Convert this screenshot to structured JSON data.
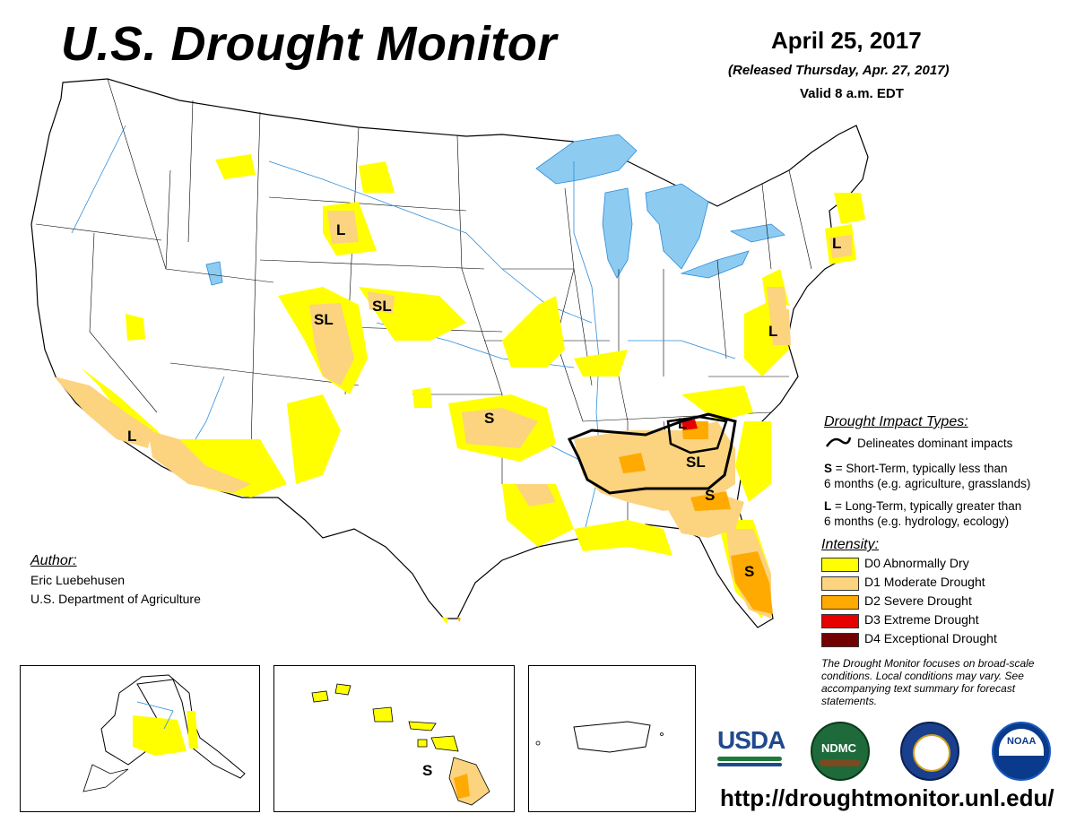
{
  "header": {
    "title": "U.S. Drought Monitor",
    "date": "April 25, 2017",
    "released": "(Released Thursday, Apr. 27, 2017)",
    "valid": "Valid 8 a.m. EDT"
  },
  "impact_types": {
    "heading": "Drought Impact Types:",
    "delineates": "Delineates dominant impacts",
    "short_term_key": "S",
    "short_term_text": " = Short-Term, typically less than",
    "short_term_text2": "6 months (e.g. agriculture, grasslands)",
    "long_term_key": "L",
    "long_term_text": " = Long-Term, typically greater than",
    "long_term_text2": "6 months (e.g. hydrology, ecology)"
  },
  "intensity": {
    "heading": "Intensity:",
    "levels": [
      {
        "label": "D0 Abnormally Dry",
        "color": "#ffff00"
      },
      {
        "label": "D1 Moderate Drought",
        "color": "#fcd37f"
      },
      {
        "label": "D2 Severe Drought",
        "color": "#ffaa00"
      },
      {
        "label": "D3 Extreme Drought",
        "color": "#e60000"
      },
      {
        "label": "D4 Exceptional Drought",
        "color": "#730000"
      }
    ]
  },
  "author": {
    "heading": "Author:",
    "name": "Eric Luebehusen",
    "org": "U.S. Department of Agriculture"
  },
  "note": "The Drought Monitor focuses on broad-scale conditions. Local conditions may vary. See accompanying text summary for forecast statements.",
  "url": "http://droughtmonitor.unl.edu/",
  "logos": {
    "usda": "USDA",
    "ndmc": "NDMC",
    "noaa": "NOAA"
  },
  "map_labels": [
    "L",
    "SL",
    "SL",
    "L",
    "S",
    "L",
    "L",
    "L",
    "SL",
    "S",
    "S",
    "S"
  ],
  "colors": {
    "water": "#8ecbf0",
    "river": "#2a8cdc",
    "boundary": "#000000"
  }
}
